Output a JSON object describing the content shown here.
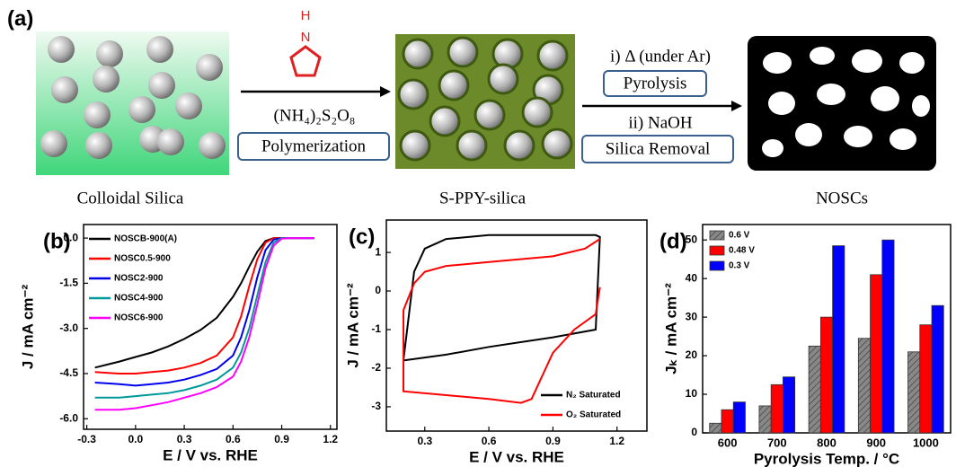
{
  "figure": {
    "panel_label": "(a)",
    "stages": [
      "Colloidal Silica",
      "S-PPY-silica",
      "NOSCs"
    ],
    "reagent_atoms": [
      "H",
      "N"
    ],
    "step1": {
      "reagent": "(NH₄)₂S₂O₈",
      "name": "Polymerization"
    },
    "step2": {
      "condition": "i) Δ (under Ar)",
      "name": "Pyrolysis",
      "reagent": "ii) NaOH",
      "removal": "Silica Removal"
    }
  },
  "chart_data": [
    {
      "type": "line",
      "panel_label": "(b)",
      "xlabel": "E / V vs. RHE",
      "ylabel": "J / mA cm⁻²",
      "xlim": [
        -0.32,
        1.24
      ],
      "xticks": [
        -0.3,
        {
          "value": 0,
          "label": "0.0"
        },
        0.3,
        0.6,
        0.9,
        1.2
      ],
      "ylim": [
        -6.35,
        0.45
      ],
      "yticks": [
        {
          "value": 0,
          "label": "0.0"
        },
        -1.5,
        {
          "value": -3,
          "label": "-3.0"
        },
        -4.5,
        {
          "value": -6,
          "label": "-6.0"
        }
      ],
      "legend": "upper-left",
      "x": [
        -0.25,
        -0.1,
        0,
        0.1,
        0.2,
        0.3,
        0.4,
        0.5,
        0.6,
        0.65,
        0.7,
        0.75,
        0.8,
        0.85,
        0.9,
        0.95,
        1.0,
        1.1
      ],
      "series": [
        {
          "name": "NOSCB-900(A)",
          "color": "#000000",
          "values": [
            -4.3,
            -4.1,
            -3.95,
            -3.8,
            -3.6,
            -3.35,
            -3.05,
            -2.65,
            -1.95,
            -1.5,
            -0.95,
            -0.45,
            -0.1,
            0,
            0,
            0,
            0,
            0
          ]
        },
        {
          "name": "NOSC0.5-900",
          "color": "#ff0000",
          "values": [
            -4.45,
            -4.5,
            -4.5,
            -4.45,
            -4.4,
            -4.3,
            -4.15,
            -3.9,
            -3.3,
            -2.6,
            -1.6,
            -0.7,
            -0.15,
            0,
            0,
            0,
            0,
            0
          ]
        },
        {
          "name": "NOSC2-900",
          "color": "#0000ee",
          "values": [
            -4.8,
            -4.85,
            -4.9,
            -4.85,
            -4.8,
            -4.7,
            -4.55,
            -4.35,
            -3.9,
            -3.3,
            -2.4,
            -1.3,
            -0.4,
            -0.05,
            0,
            0,
            0,
            0
          ]
        },
        {
          "name": "NOSC4-900",
          "color": "#009999",
          "values": [
            -5.3,
            -5.3,
            -5.25,
            -5.2,
            -5.15,
            -5.05,
            -4.9,
            -4.7,
            -4.3,
            -3.8,
            -3.0,
            -1.9,
            -0.8,
            -0.15,
            0,
            0,
            0,
            0
          ]
        },
        {
          "name": "NOSC6-900",
          "color": "#ff00ff",
          "values": [
            -5.7,
            -5.7,
            -5.65,
            -5.55,
            -5.45,
            -5.3,
            -5.15,
            -4.95,
            -4.6,
            -4.1,
            -3.3,
            -2.2,
            -1.0,
            -0.25,
            -0.02,
            0,
            0,
            0
          ]
        }
      ]
    },
    {
      "type": "line",
      "panel_label": "(c)",
      "xlabel": "E / V vs. RHE",
      "ylabel": "J / mA cm⁻²",
      "xlim": [
        0.12,
        1.34
      ],
      "xticks": [
        0.3,
        0.6,
        0.9,
        1.2
      ],
      "ylim": [
        -3.63,
        1.84
      ],
      "yticks": [
        1,
        0,
        -1,
        -2,
        -3
      ],
      "legend": "lower-right",
      "series": [
        {
          "name": "N₂ Saturated",
          "color": "#000000",
          "x": [
            0.2,
            0.25,
            0.3,
            0.4,
            0.6,
            0.9,
            1.1,
            1.12,
            1.1,
            0.9,
            0.6,
            0.4,
            0.2
          ],
          "values": [
            -1.8,
            0.5,
            1.1,
            1.35,
            1.45,
            1.45,
            1.45,
            1.4,
            -1.0,
            -1.2,
            -1.45,
            -1.65,
            -1.8
          ]
        },
        {
          "name": "O₂ Saturated",
          "color": "#ff0000",
          "x": [
            1.12,
            1.1,
            1.0,
            0.9,
            0.85,
            0.8,
            0.75,
            0.6,
            0.4,
            0.2,
            0.2,
            0.25,
            0.3,
            0.4,
            0.6,
            0.9,
            1.05,
            1.12
          ],
          "values": [
            0.1,
            -0.6,
            -1.0,
            -1.6,
            -2.2,
            -2.8,
            -2.9,
            -2.8,
            -2.7,
            -2.6,
            -0.5,
            0.2,
            0.5,
            0.65,
            0.75,
            0.9,
            1.1,
            1.35
          ]
        }
      ]
    },
    {
      "type": "bar",
      "panel_label": "(d)",
      "xlabel": "Pyrolysis Temp. / °C",
      "ylabel": "Jₖ / mA cm⁻²",
      "categories": [
        "600",
        "700",
        "800",
        "900",
        "1000"
      ],
      "ylim": [
        0,
        54
      ],
      "yticks": [
        0,
        10,
        20,
        30,
        40,
        50
      ],
      "legend": "upper-left",
      "series": [
        {
          "name": "0.6 V",
          "color": "#888888",
          "values": [
            2.5,
            7,
            22.5,
            24.5,
            21
          ]
        },
        {
          "name": "0.48 V",
          "color": "#ff0000",
          "values": [
            6,
            12.5,
            30,
            41,
            28
          ]
        },
        {
          "name": "0.3 V",
          "color": "#0000ff",
          "values": [
            8,
            14.5,
            48.5,
            50,
            33
          ]
        }
      ]
    }
  ]
}
